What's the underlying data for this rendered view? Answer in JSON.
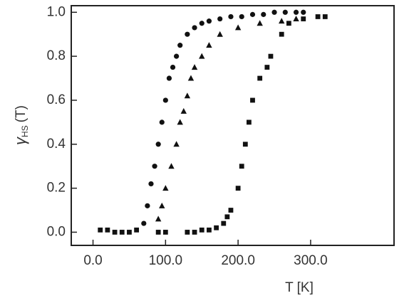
{
  "chart_data": {
    "type": "scatter",
    "xlabel": "T [K]",
    "ylabel": {
      "symbol": "γ",
      "subscript": "HS",
      "argument": "(T)"
    },
    "xlim": [
      -30,
      415
    ],
    "ylim": [
      -0.06,
      1.03
    ],
    "xticks": [
      {
        "value": 0,
        "label": "0.0"
      },
      {
        "value": 100,
        "label": "100.0"
      },
      {
        "value": 200,
        "label": "200.0"
      },
      {
        "value": 300,
        "label": "300.0"
      }
    ],
    "yticks": [
      {
        "value": 0,
        "label": "0.0"
      },
      0.2,
      0.4,
      0.6,
      0.8,
      {
        "value": 1,
        "label": "1.0"
      }
    ],
    "series": [
      {
        "marker": "circle",
        "color": "#111",
        "x": [
          70,
          75,
          80,
          85,
          90,
          95,
          100,
          105,
          110,
          115,
          120,
          130,
          140,
          150,
          160,
          175,
          190,
          205,
          220,
          235,
          250,
          265,
          280,
          290
        ],
        "values": [
          0.04,
          0.12,
          0.22,
          0.3,
          0.4,
          0.5,
          0.6,
          0.7,
          0.75,
          0.8,
          0.85,
          0.9,
          0.93,
          0.95,
          0.96,
          0.97,
          0.98,
          0.98,
          0.99,
          0.99,
          1.0,
          1.0,
          1.0,
          1.0
        ]
      },
      {
        "marker": "triangle",
        "color": "#111",
        "x": [
          90,
          95,
          100,
          108,
          115,
          120,
          125,
          130,
          135,
          140,
          150,
          160,
          175,
          200,
          230,
          260,
          280
        ],
        "values": [
          0.06,
          0.12,
          0.2,
          0.3,
          0.4,
          0.5,
          0.55,
          0.62,
          0.7,
          0.75,
          0.8,
          0.85,
          0.9,
          0.93,
          0.95,
          0.96,
          0.97
        ]
      },
      {
        "marker": "square",
        "color": "#111",
        "x": [
          10,
          20,
          30,
          40,
          50,
          60,
          90,
          100,
          130,
          140,
          150,
          160,
          170,
          180,
          185,
          190,
          200,
          205,
          210,
          215,
          220,
          230,
          240,
          245,
          260,
          270,
          290,
          310,
          320
        ],
        "values": [
          0.01,
          0.01,
          0.0,
          0.0,
          0.0,
          0.01,
          0.0,
          0.0,
          0.0,
          0.0,
          0.01,
          0.01,
          0.02,
          0.04,
          0.07,
          0.1,
          0.2,
          0.3,
          0.4,
          0.5,
          0.6,
          0.7,
          0.75,
          0.8,
          0.9,
          0.95,
          0.97,
          0.98,
          0.98
        ]
      }
    ]
  }
}
